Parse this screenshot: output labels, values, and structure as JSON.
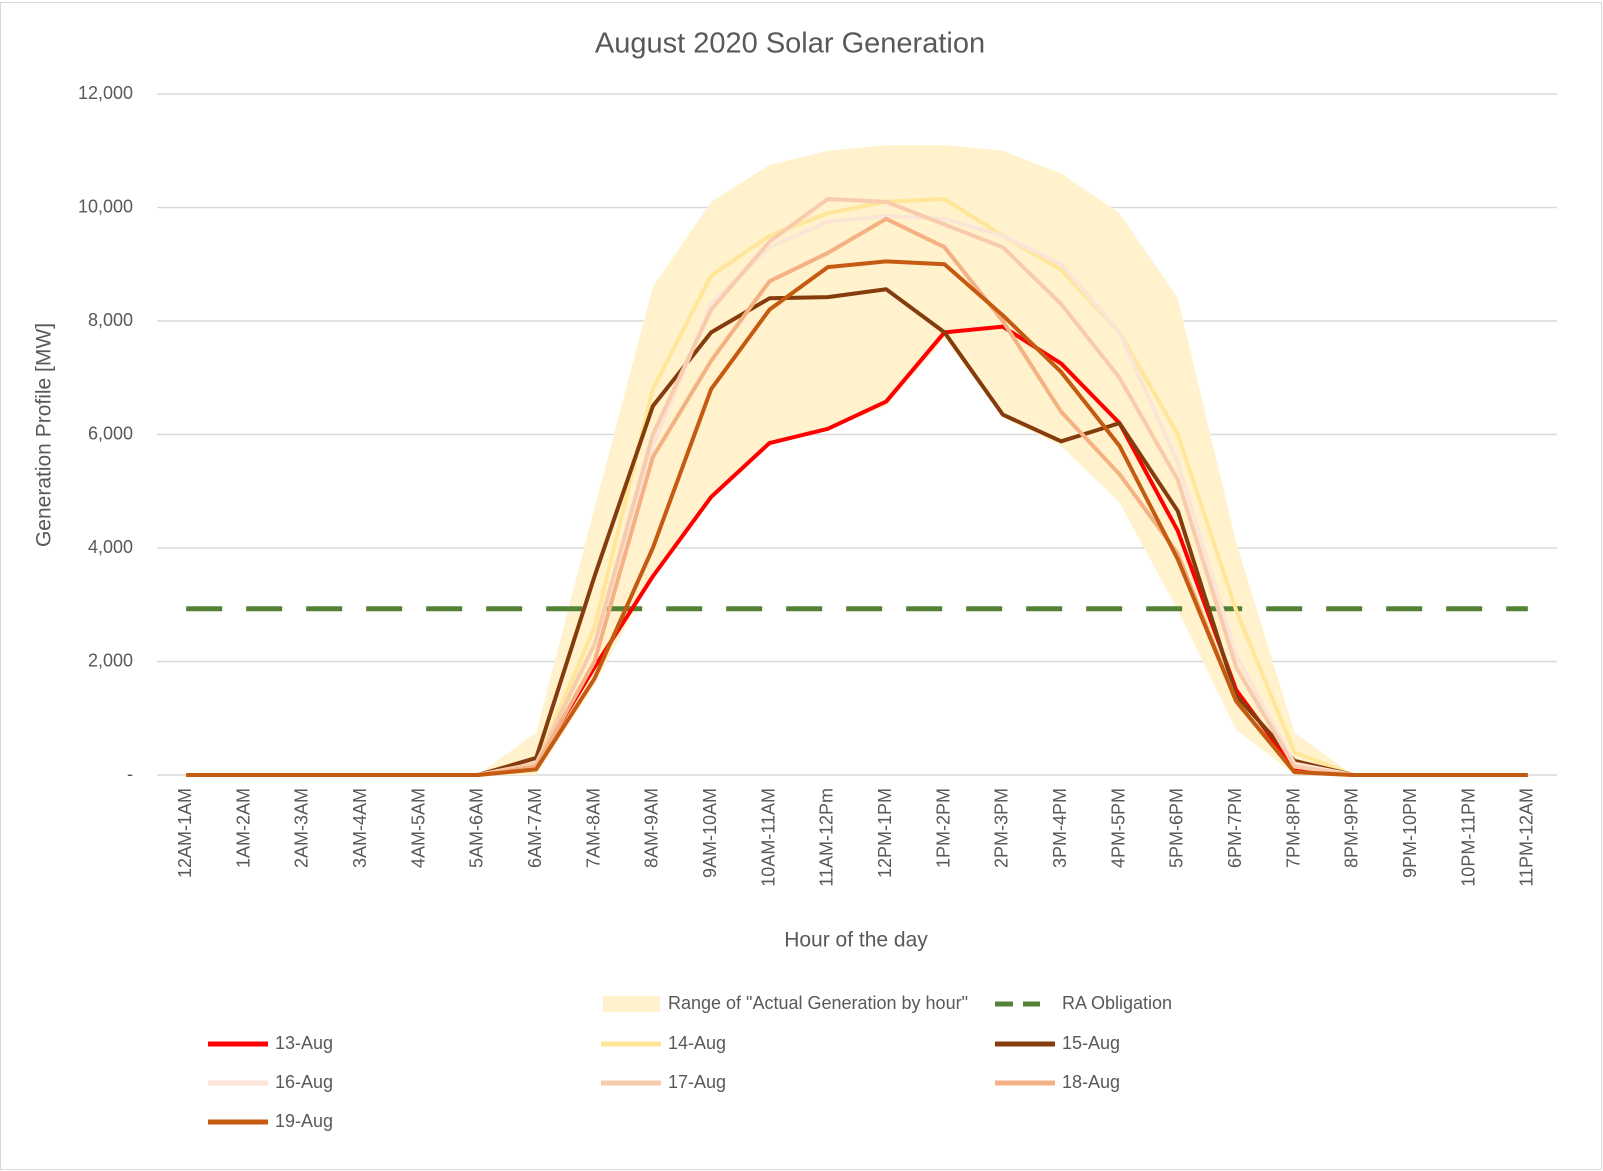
{
  "chart_data": {
    "type": "line",
    "title": "August 2020 Solar Generation",
    "x_label": "Hour of the day",
    "y_label": "Generation Profile [MW]",
    "categories": [
      "12AM-1AM",
      "1AM-2AM",
      "2AM-3AM",
      "3AM-4AM",
      "4AM-5AM",
      "5AM-6AM",
      "6AM-7AM",
      "7AM-8AM",
      "8AM-9AM",
      "9AM-10AM",
      "10AM-11AM",
      "11AM-12Pm",
      "12PM-1PM",
      "1PM-2PM",
      "2PM-3PM",
      "3PM-4PM",
      "4PM-5PM",
      "5PM-6PM",
      "6PM-7PM",
      "7PM-8PM",
      "8PM-9PM",
      "9PM-10PM",
      "10PM-11PM",
      "11PM-12AM"
    ],
    "ylim": [
      0,
      12000
    ],
    "yticks": [
      {
        "value": 0,
        "label": "-"
      },
      {
        "value": 2000,
        "label": "2,000"
      },
      {
        "value": 4000,
        "label": "4,000"
      },
      {
        "value": 6000,
        "label": "6,000"
      },
      {
        "value": 8000,
        "label": "8,000"
      },
      {
        "value": 10000,
        "label": "10,000"
      },
      {
        "value": 12000,
        "label": "12,000"
      }
    ],
    "grid": true,
    "range": {
      "name": "Range of \"Actual Generation by hour\"",
      "color": "#fff2cc",
      "upper": [
        0,
        0,
        0,
        0,
        0,
        0,
        750,
        4700,
        8600,
        10100,
        10750,
        11000,
        11100,
        11100,
        11000,
        10600,
        9900,
        8400,
        4100,
        750,
        0,
        0,
        0,
        0
      ],
      "lower": [
        0,
        0,
        0,
        0,
        0,
        0,
        0,
        1600,
        3500,
        4900,
        5800,
        6100,
        6500,
        7700,
        6300,
        5800,
        4800,
        2900,
        800,
        0,
        0,
        0,
        0,
        0
      ]
    },
    "series": [
      {
        "name": "13-Aug",
        "color": "#ff0000",
        "values": [
          0,
          0,
          0,
          0,
          0,
          0,
          200,
          1900,
          3500,
          4900,
          5850,
          6100,
          6580,
          7800,
          7900,
          7250,
          6200,
          4300,
          1500,
          100,
          0,
          0,
          0,
          0
        ]
      },
      {
        "name": "14-Aug",
        "color": "#ffe699",
        "values": [
          0,
          0,
          0,
          0,
          0,
          0,
          200,
          2600,
          6800,
          8800,
          9500,
          9900,
          10100,
          10150,
          9500,
          8900,
          7800,
          6000,
          2900,
          400,
          0,
          0,
          0,
          0
        ]
      },
      {
        "name": "15-Aug",
        "color": "#843c0c",
        "values": [
          0,
          0,
          0,
          0,
          0,
          0,
          300,
          3500,
          6500,
          7800,
          8400,
          8420,
          8560,
          7800,
          6350,
          5880,
          6200,
          4650,
          1400,
          250,
          0,
          0,
          0,
          0
        ]
      },
      {
        "name": "16-Aug",
        "color": "#fbe5d6",
        "values": [
          0,
          0,
          0,
          0,
          0,
          0,
          200,
          2300,
          5800,
          8300,
          9300,
          9750,
          9850,
          9800,
          9500,
          9000,
          7800,
          5500,
          2100,
          200,
          0,
          0,
          0,
          0
        ]
      },
      {
        "name": "17-Aug",
        "color": "#f8cbad",
        "values": [
          0,
          0,
          0,
          0,
          0,
          0,
          200,
          2300,
          6000,
          8200,
          9400,
          10150,
          10100,
          9700,
          9300,
          8300,
          7000,
          5200,
          1900,
          150,
          0,
          0,
          0,
          0
        ]
      },
      {
        "name": "18-Aug",
        "color": "#f4b183",
        "values": [
          0,
          0,
          0,
          0,
          0,
          0,
          150,
          2000,
          5600,
          7300,
          8700,
          9200,
          9800,
          9300,
          8000,
          6400,
          5300,
          3900,
          1300,
          50,
          0,
          0,
          0,
          0
        ]
      },
      {
        "name": "19-Aug",
        "color": "#c55a11",
        "values": [
          0,
          0,
          0,
          0,
          0,
          0,
          100,
          1700,
          4000,
          6800,
          8200,
          8950,
          9050,
          9000,
          8100,
          7100,
          5800,
          3800,
          1300,
          50,
          0,
          0,
          0,
          0
        ]
      },
      {
        "name": "RA Obligation",
        "color": "#548235",
        "dashed": true,
        "values": [
          2930,
          2930,
          2930,
          2930,
          2930,
          2930,
          2930,
          2930,
          2930,
          2930,
          2930,
          2930,
          2930,
          2930,
          2930,
          2930,
          2930,
          2930,
          2930,
          2930,
          2930,
          2930,
          2930,
          2930
        ]
      }
    ]
  }
}
